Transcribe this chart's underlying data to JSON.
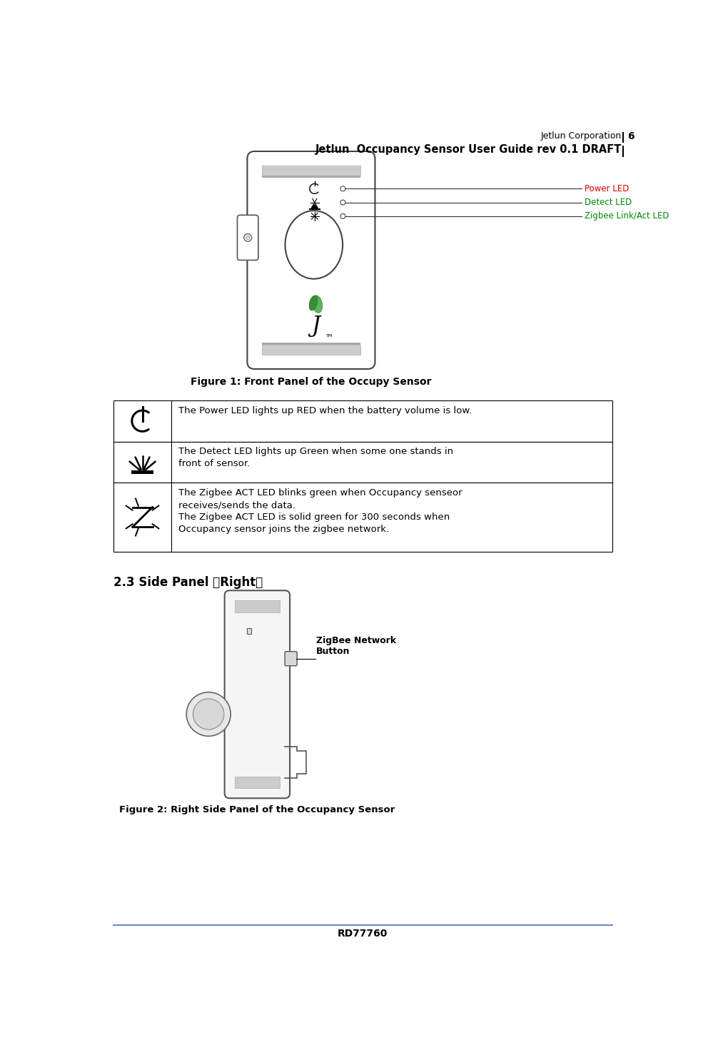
{
  "page_width": 9.92,
  "page_height": 14.78,
  "dpi": 100,
  "background_color": "#ffffff",
  "header_right_text": "Jetlun Corporation",
  "header_page_num": "6",
  "header_subtitle": "Jetlun  Occupancy Sensor User Guide rev 0.1 DRAFT",
  "figure1_caption": "Figure 1: Front Panel of the Occupy Sensor",
  "figure2_caption": "Figure 2: Right Side Panel of the Occupancy Sensor",
  "section_heading": "2.3 Side Panel （Right）",
  "table_rows": [
    {
      "icon": "power",
      "text": "The Power LED lights up RED when the battery volume is low."
    },
    {
      "icon": "detect",
      "text": "The Detect LED lights up Green when some one stands in\nfront of sensor."
    },
    {
      "icon": "zigbee",
      "text": "The Zigbee ACT LED blinks green when Occupancy senseor\nreceives/sends the data.\nThe Zigbee ACT LED is solid green for 300 seconds when\nOccupancy sensor joins the zigbee network."
    }
  ],
  "led_labels": [
    "Power LED",
    "Detect LED",
    "Zigbee Link/Act LED"
  ],
  "led_label_colors": [
    "#cc0000",
    "#008800",
    "#008800"
  ],
  "zigbee_label": "ZigBee Network\nButton",
  "footer_text": "RD77760",
  "footer_line_color": "#4472c4",
  "table_border_color": "#000000"
}
